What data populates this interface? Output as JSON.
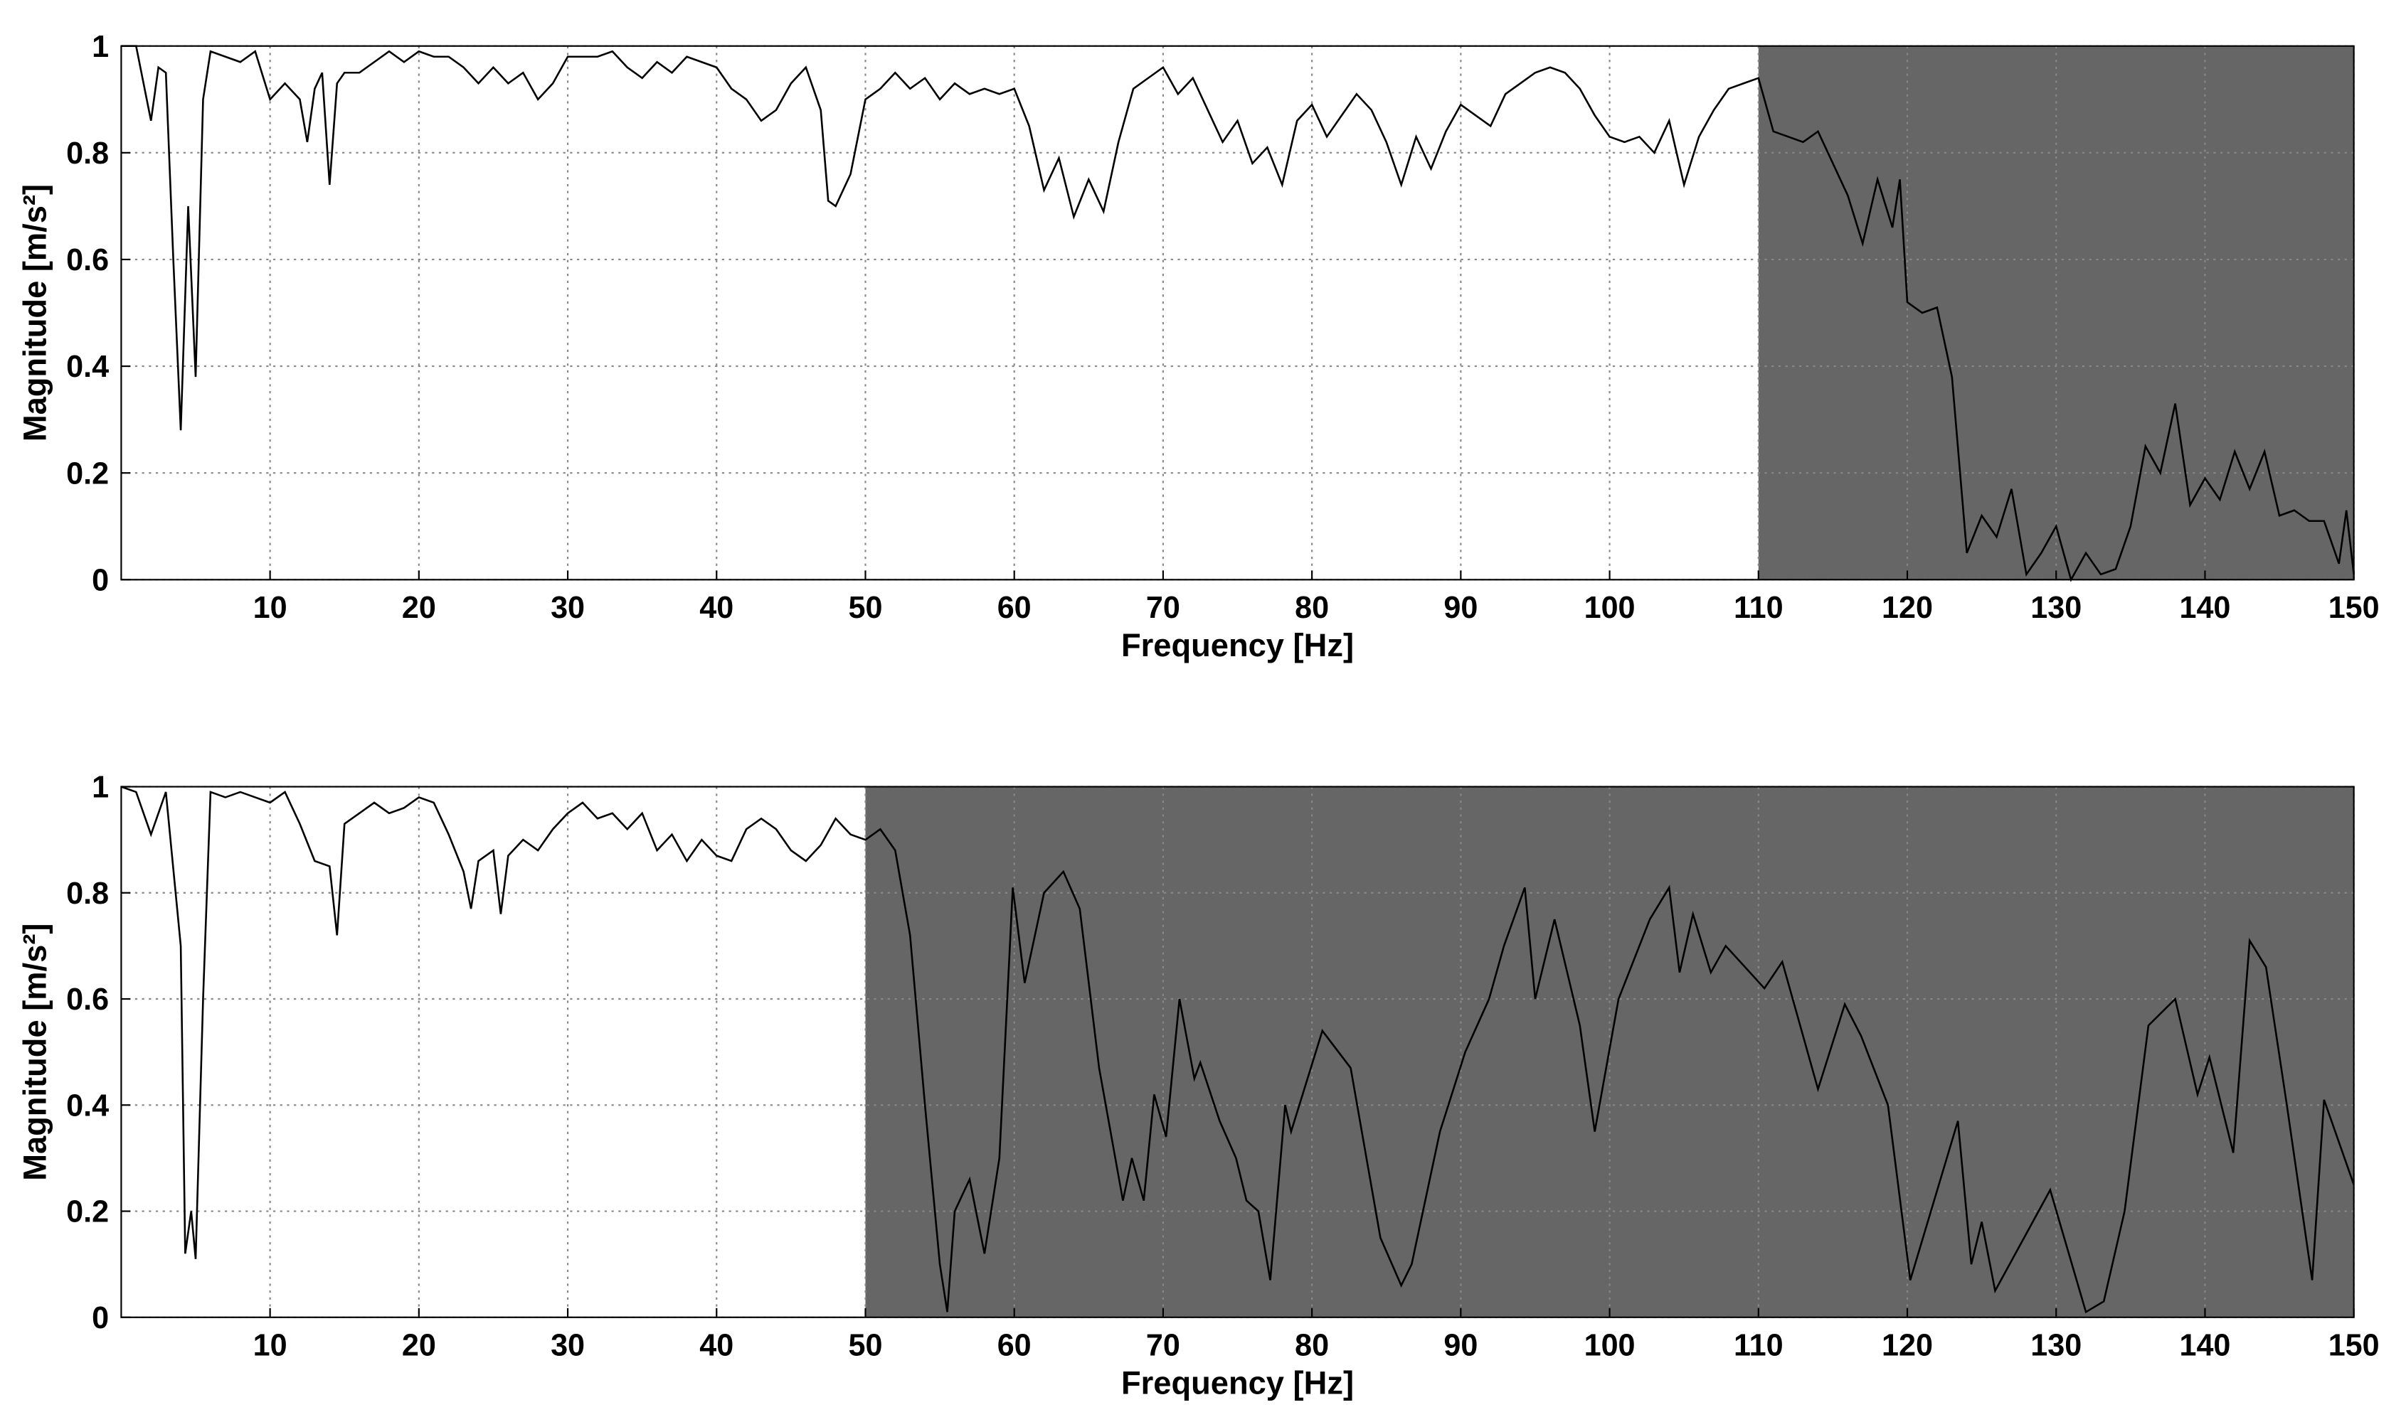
{
  "chart_data": [
    {
      "type": "line",
      "xlabel": "Frequency [Hz]",
      "ylabel": "Magnitude [m/s²]",
      "xlim": [
        0,
        150
      ],
      "ylim": [
        0,
        1
      ],
      "xticks": [
        10,
        20,
        30,
        40,
        50,
        60,
        70,
        80,
        90,
        100,
        110,
        120,
        130,
        140,
        150
      ],
      "yticks": [
        0,
        0.2,
        0.4,
        0.6,
        0.8,
        1
      ],
      "grid": true,
      "shaded_xrange": [
        110,
        150
      ],
      "shade_color": "#666666",
      "x": [
        0,
        1,
        2,
        2.5,
        3,
        3.5,
        4,
        4.5,
        5,
        5.5,
        6,
        7,
        8,
        9,
        10,
        11,
        12,
        12.5,
        13,
        13.5,
        14,
        14.5,
        15,
        16,
        17,
        18,
        19,
        20,
        21,
        22,
        23,
        24,
        25,
        26,
        27,
        28,
        29,
        30,
        31,
        32,
        33,
        34,
        35,
        36,
        37,
        38,
        39,
        40,
        41,
        42,
        43,
        44,
        45,
        46,
        47,
        47.5,
        48,
        49,
        50,
        51,
        52,
        53,
        54,
        55,
        56,
        57,
        58,
        59,
        60,
        61,
        62,
        63,
        64,
        65,
        66,
        67,
        68,
        69,
        70,
        71,
        72,
        73,
        74,
        75,
        76,
        77,
        78,
        79,
        80,
        81,
        82,
        83,
        84,
        85,
        86,
        87,
        88,
        89,
        90,
        91,
        92,
        93,
        94,
        95,
        96,
        97,
        98,
        99,
        100,
        101,
        102,
        103,
        104,
        105,
        106,
        107,
        108,
        109,
        110,
        111,
        112,
        113,
        114,
        115,
        116,
        117,
        118,
        119,
        119.5,
        120,
        121,
        122,
        123,
        124,
        125,
        126,
        127,
        128,
        129,
        130,
        131,
        132,
        133,
        134,
        135,
        136,
        137,
        138,
        139,
        140,
        141,
        142,
        143,
        144,
        145,
        146,
        147,
        148,
        149,
        149.5,
        150
      ],
      "series": [
        {
          "color": "#000000",
          "values": [
            1,
            1,
            0.86,
            0.96,
            0.95,
            0.6,
            0.28,
            0.7,
            0.38,
            0.9,
            0.99,
            0.98,
            0.97,
            0.99,
            0.9,
            0.93,
            0.9,
            0.82,
            0.92,
            0.95,
            0.74,
            0.93,
            0.95,
            0.95,
            0.97,
            0.99,
            0.97,
            0.99,
            0.98,
            0.98,
            0.96,
            0.93,
            0.96,
            0.93,
            0.95,
            0.9,
            0.93,
            0.98,
            0.98,
            0.98,
            0.99,
            0.96,
            0.94,
            0.97,
            0.95,
            0.98,
            0.97,
            0.96,
            0.92,
            0.9,
            0.86,
            0.88,
            0.93,
            0.96,
            0.88,
            0.71,
            0.7,
            0.76,
            0.9,
            0.92,
            0.95,
            0.92,
            0.94,
            0.9,
            0.93,
            0.91,
            0.92,
            0.91,
            0.92,
            0.85,
            0.73,
            0.79,
            0.68,
            0.75,
            0.69,
            0.82,
            0.92,
            0.94,
            0.96,
            0.91,
            0.94,
            0.88,
            0.82,
            0.86,
            0.78,
            0.81,
            0.74,
            0.86,
            0.89,
            0.83,
            0.87,
            0.91,
            0.88,
            0.82,
            0.74,
            0.83,
            0.77,
            0.84,
            0.89,
            0.87,
            0.85,
            0.91,
            0.93,
            0.95,
            0.96,
            0.95,
            0.92,
            0.87,
            0.83,
            0.82,
            0.83,
            0.8,
            0.86,
            0.74,
            0.83,
            0.88,
            0.92,
            0.93,
            0.94,
            0.84,
            0.83,
            0.82,
            0.84,
            0.78,
            0.72,
            0.63,
            0.75,
            0.66,
            0.75,
            0.52,
            0.5,
            0.51,
            0.38,
            0.05,
            0.12,
            0.08,
            0.17,
            0.01,
            0.05,
            0.1,
            0,
            0.05,
            0.01,
            0.02,
            0.1,
            0.25,
            0.2,
            0.33,
            0.14,
            0.19,
            0.15,
            0.24,
            0.17,
            0.24,
            0.12,
            0.13,
            0.11,
            0.11,
            0.03,
            0.13,
            0.01
          ]
        }
      ]
    },
    {
      "type": "line",
      "xlabel": "Frequency [Hz]",
      "ylabel": "Magnitude [m/s²]",
      "xlim": [
        0,
        150
      ],
      "ylim": [
        0,
        1
      ],
      "xticks": [
        10,
        20,
        30,
        40,
        50,
        60,
        70,
        80,
        90,
        100,
        110,
        120,
        130,
        140,
        150
      ],
      "yticks": [
        0,
        0.2,
        0.4,
        0.6,
        0.8,
        1
      ],
      "grid": true,
      "shaded_xrange": [
        50,
        150
      ],
      "shade_color": "#666666",
      "x": [
        0,
        1,
        2,
        3,
        4,
        4.3,
        4.7,
        5,
        5.5,
        6,
        7,
        8,
        9,
        10,
        11,
        12,
        13,
        14,
        14.5,
        15,
        16,
        17,
        18,
        19,
        20,
        21,
        22,
        23,
        23.5,
        24,
        25,
        25.5,
        26,
        27,
        28,
        29,
        30,
        31,
        32,
        33,
        34,
        35,
        36,
        37,
        38,
        39,
        40,
        41,
        42,
        43,
        44,
        45,
        46,
        47,
        48,
        49,
        50,
        51,
        52,
        53,
        54,
        55,
        55.5,
        56,
        57,
        58,
        59,
        59.9,
        60.7,
        62,
        63.3,
        64.4,
        65.7,
        67.3,
        67.9,
        68.7,
        69.4,
        70.2,
        71.1,
        72.1,
        72.5,
        73.8,
        74.9,
        75.6,
        76.4,
        77.2,
        78.2,
        78.6,
        80.7,
        82.6,
        84.6,
        86,
        86.7,
        88.6,
        90.3,
        91.9,
        92.9,
        94.3,
        95,
        96.3,
        98,
        99,
        100.6,
        102.7,
        104,
        104.7,
        105.6,
        106.8,
        107.8,
        110.4,
        111.6,
        114,
        115.8,
        116.9,
        118.7,
        120.2,
        121.8,
        123.4,
        124.3,
        125,
        125.9,
        129.6,
        132,
        133.2,
        134.6,
        136.2,
        138,
        139.5,
        140.3,
        141.9,
        143,
        144.1,
        145.5,
        147.2,
        148,
        150
      ],
      "series": [
        {
          "color": "#000000",
          "values": [
            1,
            0.99,
            0.91,
            0.99,
            0.7,
            0.12,
            0.2,
            0.11,
            0.6,
            0.99,
            0.98,
            0.99,
            0.98,
            0.97,
            0.99,
            0.93,
            0.86,
            0.85,
            0.72,
            0.93,
            0.95,
            0.97,
            0.95,
            0.96,
            0.98,
            0.97,
            0.91,
            0.84,
            0.77,
            0.86,
            0.88,
            0.76,
            0.87,
            0.9,
            0.88,
            0.92,
            0.95,
            0.97,
            0.94,
            0.95,
            0.92,
            0.95,
            0.88,
            0.91,
            0.86,
            0.9,
            0.87,
            0.86,
            0.92,
            0.94,
            0.92,
            0.88,
            0.86,
            0.89,
            0.94,
            0.91,
            0.9,
            0.92,
            0.88,
            0.72,
            0.4,
            0.1,
            0.01,
            0.2,
            0.26,
            0.12,
            0.3,
            0.81,
            0.63,
            0.8,
            0.84,
            0.77,
            0.47,
            0.22,
            0.3,
            0.22,
            0.42,
            0.34,
            0.6,
            0.45,
            0.48,
            0.37,
            0.3,
            0.22,
            0.2,
            0.07,
            0.4,
            0.35,
            0.54,
            0.47,
            0.15,
            0.06,
            0.1,
            0.35,
            0.5,
            0.6,
            0.7,
            0.81,
            0.6,
            0.75,
            0.55,
            0.35,
            0.6,
            0.75,
            0.81,
            0.65,
            0.76,
            0.65,
            0.7,
            0.62,
            0.67,
            0.43,
            0.59,
            0.53,
            0.4,
            0.07,
            0.22,
            0.37,
            0.1,
            0.18,
            0.05,
            0.24,
            0.01,
            0.03,
            0.2,
            0.55,
            0.6,
            0.42,
            0.49,
            0.31,
            0.71,
            0.66,
            0.4,
            0.07,
            0.41,
            0.25
          ]
        }
      ]
    }
  ]
}
